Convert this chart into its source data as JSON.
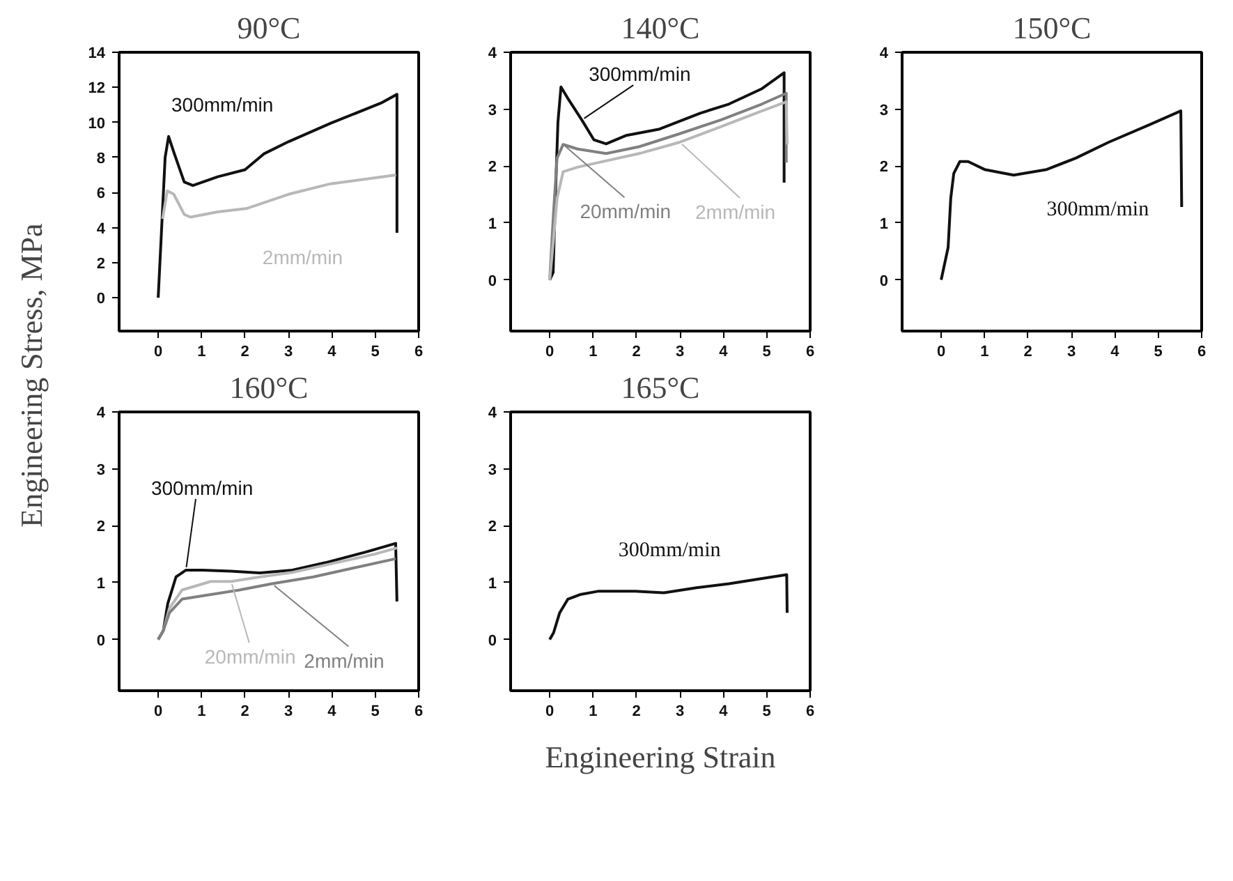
{
  "chart_data": [
    {
      "type": "line",
      "title": "90°C",
      "ylabel": "Engineering Stress, MPa",
      "xlim": [
        -0.9,
        6
      ],
      "xticks": [
        0,
        1,
        2,
        3,
        4,
        5,
        6
      ],
      "ylim": [
        -1.9,
        14
      ],
      "yticks": [
        0,
        2,
        4,
        6,
        8,
        10,
        12,
        14
      ],
      "grid": false,
      "legend": false,
      "series": [
        {
          "name": "300mm/min",
          "color": "#111111",
          "x": [
            0,
            0.16,
            0.24,
            0.36,
            0.6,
            0.8,
            1.37,
            2.0,
            2.43,
            3.0,
            3.97,
            5.13,
            5.5,
            5.5
          ],
          "values": [
            0,
            8.0,
            9.2,
            8.3,
            6.6,
            6.4,
            6.9,
            7.3,
            8.2,
            8.9,
            9.95,
            11.1,
            11.6,
            3.7
          ]
        },
        {
          "name": "2mm/min",
          "color": "#b8b8b8",
          "x": [
            0.1,
            0.21,
            0.36,
            0.6,
            0.74,
            1.37,
            2.05,
            3.0,
            3.97,
            5.48
          ],
          "values": [
            4.5,
            6.1,
            5.9,
            4.75,
            4.6,
            4.9,
            5.1,
            5.9,
            6.5,
            7.0
          ]
        }
      ]
    },
    {
      "type": "line",
      "title": "140°C",
      "xlim": [
        -0.9,
        6
      ],
      "xticks": [
        0,
        1,
        2,
        3,
        4,
        5,
        6
      ],
      "ylim": [
        -0.9,
        4
      ],
      "yticks": [
        0,
        1,
        2,
        3,
        4
      ],
      "grid": false,
      "legend": false,
      "series": [
        {
          "name": "300mm/min",
          "color": "#111111",
          "x": [
            0,
            0.08,
            0.12,
            0.19,
            0.26,
            0.41,
            0.74,
            1.02,
            1.3,
            1.77,
            2.53,
            3.47,
            4.13,
            4.89,
            5.4,
            5.4
          ],
          "values": [
            0,
            0.13,
            1.2,
            2.77,
            3.39,
            3.2,
            2.81,
            2.46,
            2.39,
            2.54,
            2.65,
            2.93,
            3.09,
            3.36,
            3.64,
            1.71
          ]
        },
        {
          "name": "20mm/min",
          "color": "#808080",
          "x": [
            0,
            0.09,
            0.17,
            0.31,
            0.64,
            1.3,
            2.06,
            3.0,
            3.94,
            4.89,
            5.45,
            5.45
          ],
          "values": [
            0,
            1.2,
            2.14,
            2.38,
            2.3,
            2.22,
            2.34,
            2.57,
            2.81,
            3.09,
            3.28,
            2.06
          ]
        },
        {
          "name": "2mm/min",
          "color": "#b8b8b8",
          "x": [
            0,
            0.09,
            0.17,
            0.31,
            0.64,
            1.11,
            2.06,
            3.0,
            3.94,
            4.89,
            5.45,
            5.47
          ],
          "values": [
            0,
            0.72,
            1.43,
            1.9,
            1.98,
            2.06,
            2.22,
            2.42,
            2.69,
            2.97,
            3.13,
            2.38
          ]
        }
      ]
    },
    {
      "type": "line",
      "title": "150°C",
      "xlim": [
        -0.9,
        6
      ],
      "xticks": [
        0,
        1,
        2,
        3,
        4,
        5,
        6
      ],
      "ylim": [
        -0.9,
        4
      ],
      "yticks": [
        0,
        1,
        2,
        3,
        4
      ],
      "grid": false,
      "legend": false,
      "series": [
        {
          "name": "300mm/min",
          "color": "#111111",
          "x": [
            0,
            0.16,
            0.22,
            0.29,
            0.43,
            0.62,
            1.0,
            1.67,
            2.43,
            3.1,
            3.86,
            4.81,
            5.52,
            5.54
          ],
          "values": [
            0,
            0.57,
            1.43,
            1.87,
            2.08,
            2.08,
            1.94,
            1.84,
            1.94,
            2.14,
            2.42,
            2.73,
            2.97,
            1.28
          ]
        }
      ]
    },
    {
      "type": "line",
      "title": "160°C",
      "xlim": [
        -0.9,
        6
      ],
      "xticks": [
        0,
        1,
        2,
        3,
        4,
        5,
        6
      ],
      "ylim": [
        -0.9,
        4
      ],
      "yticks": [
        0,
        1,
        2,
        3,
        4
      ],
      "grid": false,
      "legend": false,
      "series": [
        {
          "name": "300mm/min",
          "color": "#111111",
          "x": [
            0,
            0.12,
            0.22,
            0.41,
            0.64,
            1.02,
            1.68,
            2.34,
            3.09,
            3.85,
            4.79,
            5.47,
            5.5
          ],
          "values": [
            0,
            0.16,
            0.63,
            1.1,
            1.22,
            1.22,
            1.2,
            1.17,
            1.22,
            1.35,
            1.54,
            1.69,
            0.67
          ]
        },
        {
          "name": "20mm/min",
          "color": "#b8b8b8",
          "x": [
            0,
            0.12,
            0.26,
            0.55,
            1.21,
            1.68,
            2.34,
            3.09,
            4.04,
            4.98,
            5.5
          ],
          "values": [
            0,
            0.16,
            0.55,
            0.87,
            1.02,
            1.02,
            1.1,
            1.18,
            1.34,
            1.5,
            1.61
          ]
        },
        {
          "name": "2mm/min",
          "color": "#808080",
          "x": [
            0,
            0.12,
            0.26,
            0.55,
            1.21,
            1.87,
            2.62,
            3.57,
            4.51,
            5.47
          ],
          "values": [
            0,
            0.16,
            0.47,
            0.71,
            0.79,
            0.87,
            0.98,
            1.1,
            1.26,
            1.42
          ]
        }
      ]
    },
    {
      "type": "line",
      "title": "165°C",
      "xlabel": "Engineering Strain",
      "xlim": [
        -0.9,
        6
      ],
      "xticks": [
        0,
        1,
        2,
        3,
        4,
        5,
        6
      ],
      "ylim": [
        -0.9,
        4
      ],
      "yticks": [
        0,
        1,
        2,
        3,
        4
      ],
      "grid": false,
      "legend": false,
      "series": [
        {
          "name": "300mm/min",
          "color": "#111111",
          "x": [
            0,
            0.09,
            0.23,
            0.42,
            0.7,
            1.13,
            1.97,
            2.63,
            3.38,
            4.13,
            4.79,
            5.46,
            5.47
          ],
          "values": [
            0,
            0.12,
            0.47,
            0.71,
            0.79,
            0.85,
            0.85,
            0.82,
            0.91,
            0.98,
            1.06,
            1.14,
            0.47
          ]
        }
      ]
    }
  ]
}
